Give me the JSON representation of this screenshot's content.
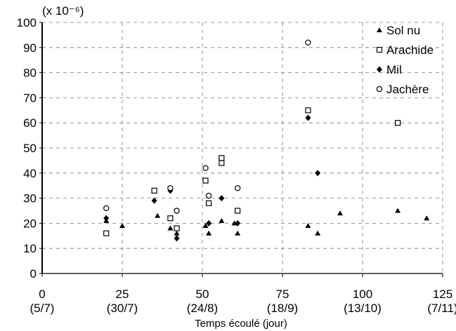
{
  "chart_data": {
    "type": "scatter",
    "xlabel": "Temps écoulé (jour)",
    "ylabel_multiplier": "(x 10⁻⁶)",
    "xlim": [
      0,
      125
    ],
    "ylim": [
      0,
      100
    ],
    "x_ticks": [
      {
        "value": 0,
        "label": "0",
        "date": "(5/7)"
      },
      {
        "value": 25,
        "label": "25",
        "date": "(30/7)"
      },
      {
        "value": 50,
        "label": "50",
        "date": "(24/8)"
      },
      {
        "value": 75,
        "label": "75",
        "date": "(18/9)"
      },
      {
        "value": 100,
        "label": "100",
        "date": "(13/10)"
      },
      {
        "value": 125,
        "label": "125",
        "date": "(7/11)"
      }
    ],
    "y_ticks": [
      0,
      10,
      20,
      30,
      40,
      50,
      60,
      70,
      80,
      90,
      100
    ],
    "gridlines": "dashed",
    "legend_position": "top-right",
    "series": [
      {
        "name": "Sol nu",
        "marker": "triangle",
        "points": [
          [
            20,
            21
          ],
          [
            25,
            19
          ],
          [
            36,
            23
          ],
          [
            40,
            18
          ],
          [
            42,
            16
          ],
          [
            51,
            19
          ],
          [
            52,
            16
          ],
          [
            56,
            21
          ],
          [
            60,
            20
          ],
          [
            61,
            16
          ],
          [
            83,
            19
          ],
          [
            86,
            16
          ],
          [
            93,
            24
          ],
          [
            111,
            25
          ],
          [
            120,
            22
          ]
        ]
      },
      {
        "name": "Arachide",
        "marker": "square",
        "points": [
          [
            20,
            16
          ],
          [
            35,
            33
          ],
          [
            40,
            22
          ],
          [
            42,
            18
          ],
          [
            51,
            37
          ],
          [
            52,
            28
          ],
          [
            56,
            44
          ],
          [
            56,
            46
          ],
          [
            61,
            25
          ],
          [
            83,
            65
          ],
          [
            111,
            60
          ]
        ]
      },
      {
        "name": "Mil",
        "marker": "diamond",
        "points": [
          [
            20,
            22
          ],
          [
            35,
            29
          ],
          [
            40,
            33
          ],
          [
            42,
            14
          ],
          [
            52,
            20
          ],
          [
            56,
            30
          ],
          [
            61,
            20
          ],
          [
            83,
            62
          ],
          [
            86,
            40
          ]
        ]
      },
      {
        "name": "Jachère",
        "marker": "circle",
        "points": [
          [
            20,
            26
          ],
          [
            40,
            34
          ],
          [
            42,
            25
          ],
          [
            51,
            42
          ],
          [
            52,
            31
          ],
          [
            61,
            34
          ],
          [
            83,
            92
          ]
        ]
      }
    ]
  }
}
